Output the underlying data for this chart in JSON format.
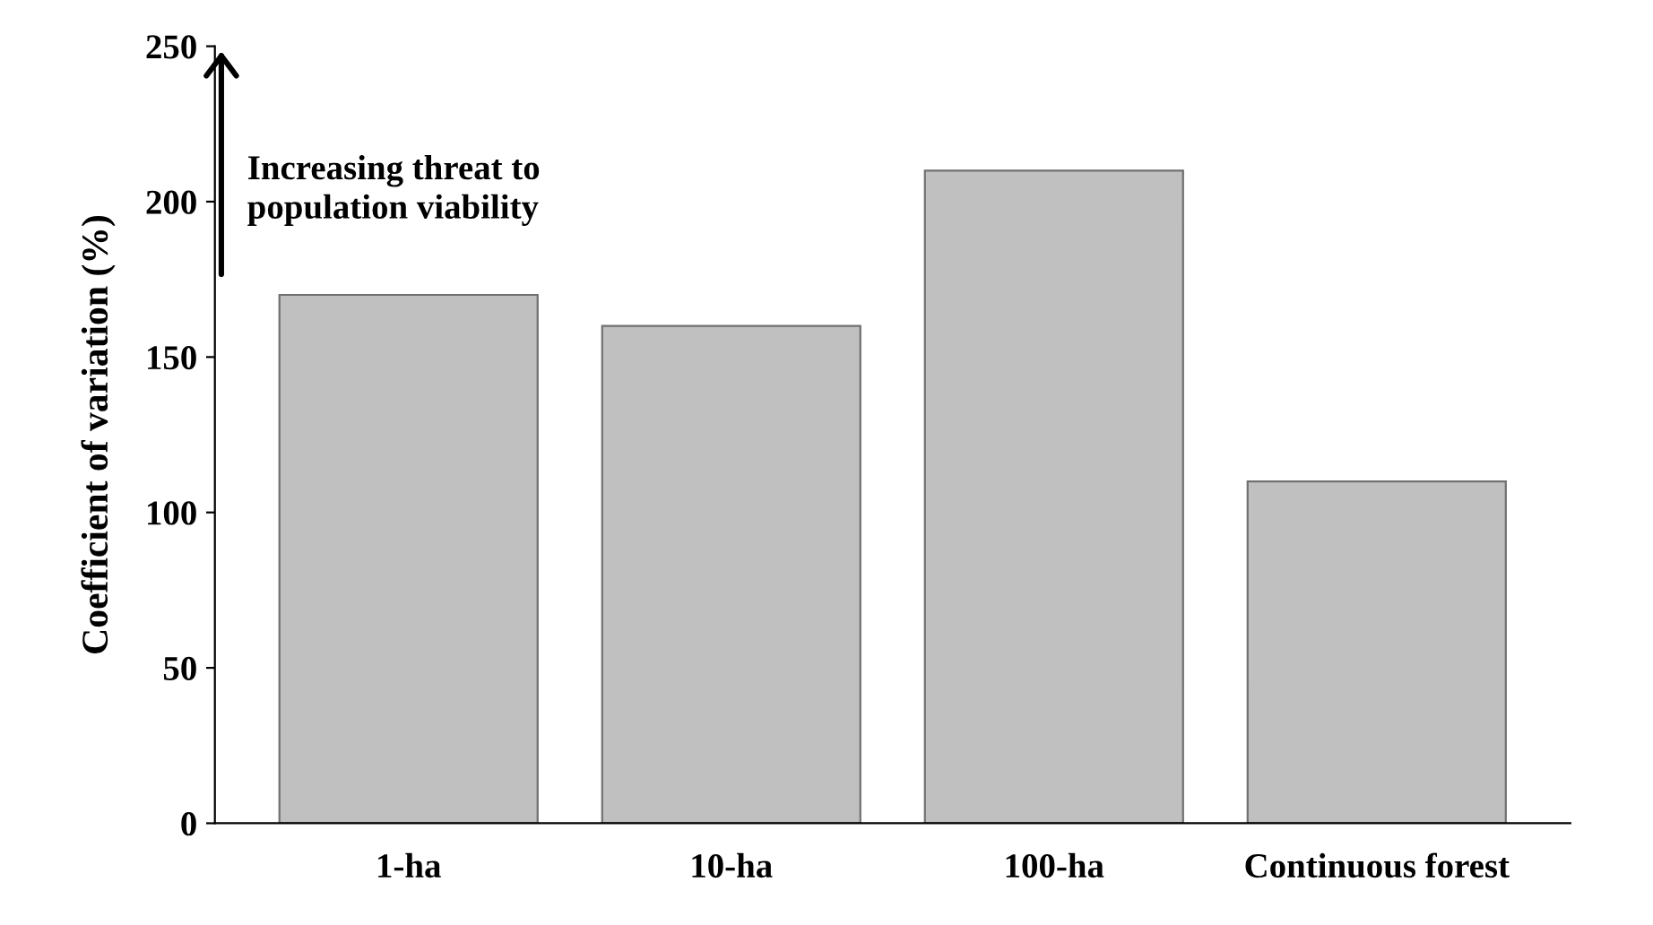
{
  "chart_data": {
    "type": "bar",
    "ylabel": "Coefficient of variation (%)",
    "categories": [
      "1-ha",
      "10-ha",
      "100-ha",
      "Continuous forest"
    ],
    "values": [
      170,
      160,
      210,
      110
    ],
    "color": "#c0c0c0",
    "ylim": [
      0,
      250
    ],
    "yticks": [
      0,
      50,
      100,
      150,
      200,
      250
    ],
    "grid": false,
    "annotations": [
      "Increasing threat to\npopulation viability"
    ]
  }
}
